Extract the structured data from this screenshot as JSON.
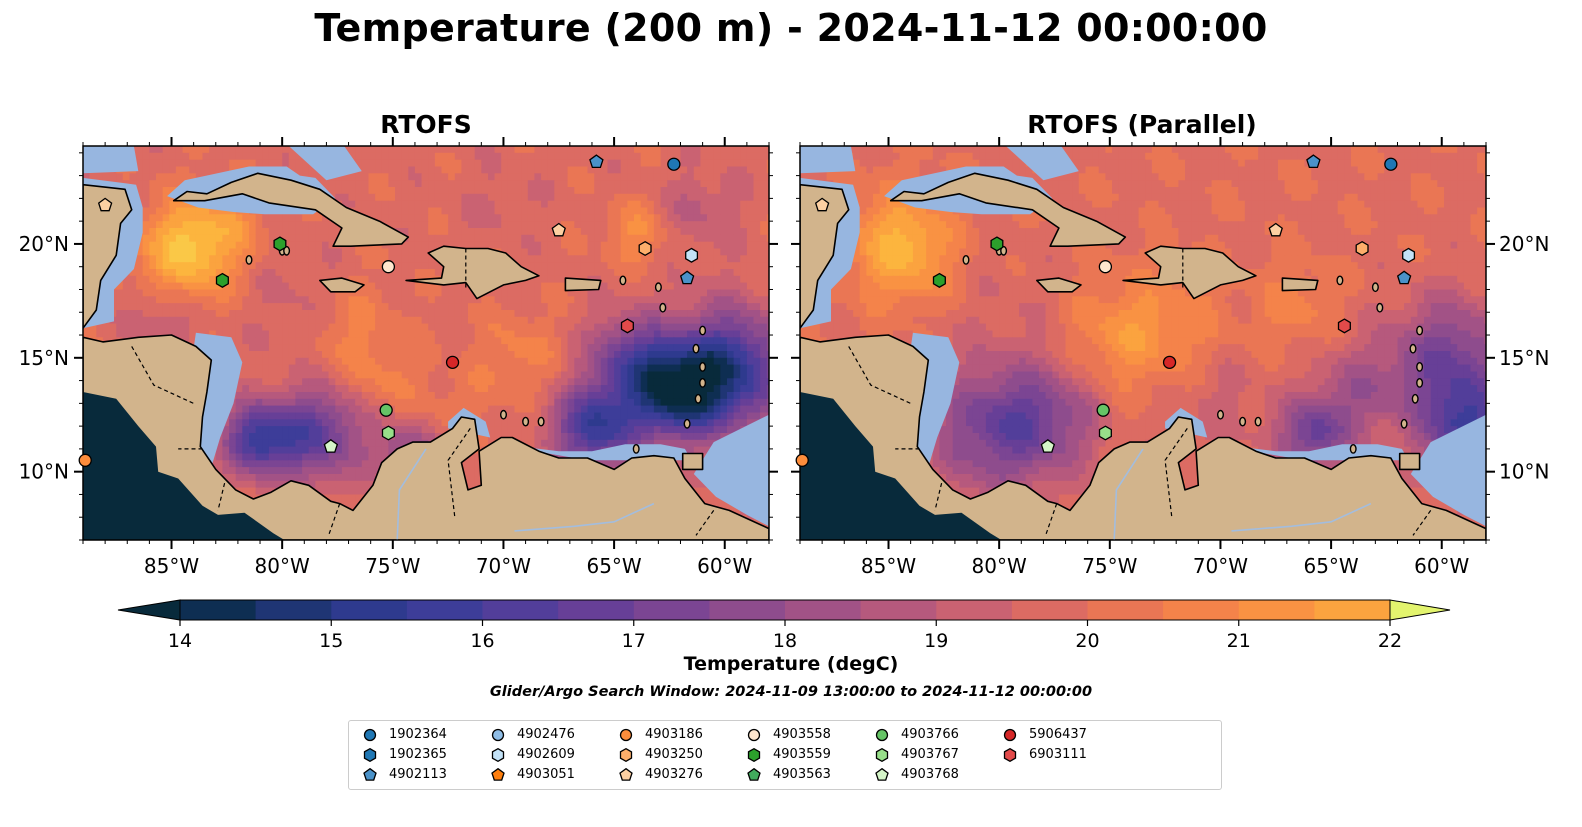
{
  "title": "Temperature (200 m) - 2024-11-12 00:00:00",
  "panels": [
    {
      "title": "RTOFS"
    },
    {
      "title": "RTOFS (Parallel)"
    }
  ],
  "axes": {
    "lon_ticks": [
      "85°W",
      "80°W",
      "75°W",
      "70°W",
      "65°W",
      "60°W"
    ],
    "lat_ticks": [
      "20°N",
      "15°N",
      "10°N"
    ]
  },
  "colorbar": {
    "label": "Temperature (degC)",
    "ticks": [
      "14",
      "15",
      "16",
      "17",
      "18",
      "19",
      "20",
      "21",
      "22"
    ],
    "colors": [
      "#082a3b",
      "#0e2e52",
      "#1f3574",
      "#2e3a8e",
      "#3d3d99",
      "#523e9a",
      "#673f97",
      "#7b4593",
      "#8e4c8d",
      "#a25286",
      "#b6597d",
      "#ca6272",
      "#dc6b63",
      "#ea7654",
      "#f4834a",
      "#f99243",
      "#fba33f",
      "#fcb53e",
      "#fac847",
      "#f4dc57",
      "#e3f46e"
    ],
    "under_color": "#082a3b",
    "over_color": "#e3f46e"
  },
  "search_window": "Glider/Argo Search Window: 2024-11-09 13:00:00 to 2024-11-12 00:00:00",
  "map_colors": {
    "land": "#d2b48c",
    "shelf": "#97b6e0",
    "deep_cold": "#082a3b"
  },
  "legend": [
    {
      "id": "1902364",
      "marker": "circle",
      "color": "#1f77b4"
    },
    {
      "id": "1902365",
      "marker": "hexagon",
      "color": "#1f77b4"
    },
    {
      "id": "4902113",
      "marker": "pentagon",
      "color": "#4a92c9"
    },
    {
      "id": "4902476",
      "marker": "circle",
      "color": "#8fbde6"
    },
    {
      "id": "4902609",
      "marker": "hexagon",
      "color": "#c3e2f7"
    },
    {
      "id": "4903051",
      "marker": "pentagon",
      "color": "#ff7f0e"
    },
    {
      "id": "4903186",
      "marker": "circle",
      "color": "#fd8d3c"
    },
    {
      "id": "4903250",
      "marker": "hexagon",
      "color": "#fdae6b"
    },
    {
      "id": "4903276",
      "marker": "pentagon",
      "color": "#fdd0a2"
    },
    {
      "id": "4903558",
      "marker": "circle",
      "color": "#fee6ce"
    },
    {
      "id": "4903559",
      "marker": "hexagon",
      "color": "#2ca02c"
    },
    {
      "id": "4903563",
      "marker": "pentagon",
      "color": "#41ab5d"
    },
    {
      "id": "4903766",
      "marker": "circle",
      "color": "#66c466"
    },
    {
      "id": "4903767",
      "marker": "hexagon",
      "color": "#98df8a"
    },
    {
      "id": "4903768",
      "marker": "pentagon",
      "color": "#d5f5c8"
    },
    {
      "id": "5906437",
      "marker": "circle",
      "color": "#d62728"
    },
    {
      "id": "6903111",
      "marker": "hexagon",
      "color": "#e24a4a"
    }
  ],
  "floats": [
    {
      "id": "1902364",
      "lon": -62.3,
      "lat": 23.5
    },
    {
      "id": "4902113",
      "lon": -65.8,
      "lat": 23.6
    },
    {
      "id": "4903276",
      "lon": -88.0,
      "lat": 21.7
    },
    {
      "id": "4903276",
      "lon": -67.5,
      "lat": 20.6
    },
    {
      "id": "4903559",
      "lon": -80.1,
      "lat": 20.0
    },
    {
      "id": "4903250",
      "lon": -63.6,
      "lat": 19.8
    },
    {
      "id": "4902609",
      "lon": -61.5,
      "lat": 19.5
    },
    {
      "id": "4903558",
      "lon": -75.2,
      "lat": 19.0
    },
    {
      "id": "4903559",
      "lon": -82.7,
      "lat": 18.4
    },
    {
      "id": "4902113",
      "lon": -61.7,
      "lat": 18.5
    },
    {
      "id": "6903111",
      "lon": -64.4,
      "lat": 16.4
    },
    {
      "id": "5906437",
      "lon": -72.3,
      "lat": 14.8
    },
    {
      "id": "4903766",
      "lon": -75.3,
      "lat": 12.7
    },
    {
      "id": "4903767",
      "lon": -75.2,
      "lat": 11.7
    },
    {
      "id": "4903768",
      "lon": -77.8,
      "lat": 11.1
    },
    {
      "id": "4903186",
      "lon": -88.9,
      "lat": 10.5
    }
  ]
}
